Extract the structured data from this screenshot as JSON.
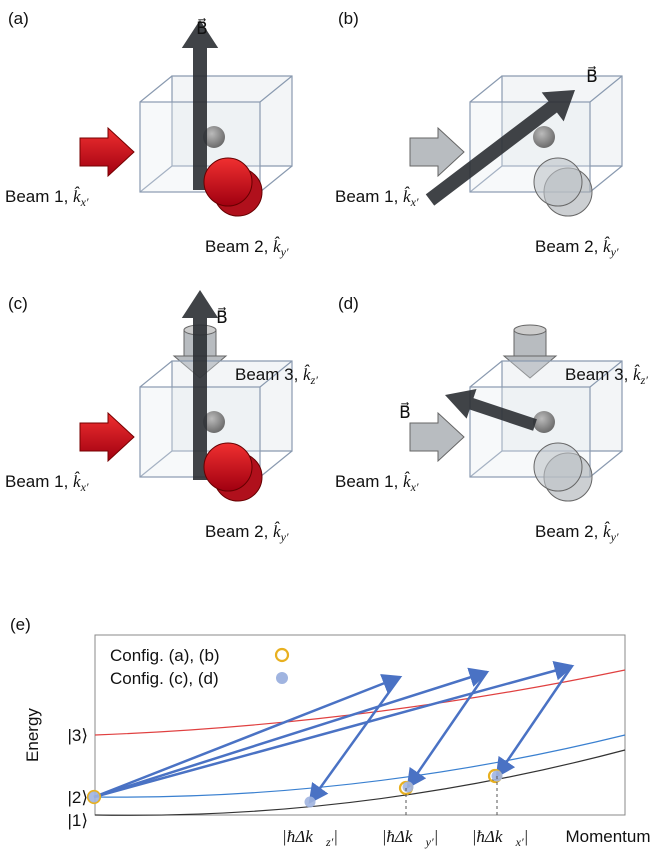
{
  "panels": [
    {
      "label": "(a)",
      "field": "B⃗",
      "beams": [
        {
          "name": "Beam 1, ",
          "symbol": "k̂",
          "sub": "x′"
        },
        {
          "name": "Beam 2, ",
          "symbol": "k̂",
          "sub": "y′"
        }
      ]
    },
    {
      "label": "(b)",
      "field": "B⃗",
      "beams": [
        {
          "name": "Beam 1, ",
          "symbol": "k̂",
          "sub": "x′"
        },
        {
          "name": "Beam 2, ",
          "symbol": "k̂",
          "sub": "y′"
        }
      ]
    },
    {
      "label": "(c)",
      "field": "B⃗",
      "beams": [
        {
          "name": "Beam 1, ",
          "symbol": "k̂",
          "sub": "x′"
        },
        {
          "name": "Beam 2, ",
          "symbol": "k̂",
          "sub": "y′"
        },
        {
          "name": "Beam 3, ",
          "symbol": "k̂",
          "sub": "z′"
        }
      ]
    },
    {
      "label": "(d)",
      "field": "B⃗",
      "beams": [
        {
          "name": "Beam 1, ",
          "symbol": "k̂",
          "sub": "x′"
        },
        {
          "name": "Beam 2, ",
          "symbol": "k̂",
          "sub": "y′"
        },
        {
          "name": "Beam 3, ",
          "symbol": "k̂",
          "sub": "z′"
        }
      ]
    }
  ],
  "energy_diagram": {
    "label": "(e)",
    "legend": [
      "Config. (a), (b)",
      "Config. (c), (d)"
    ],
    "y_axis": "Energy",
    "levels": [
      "|3⟩",
      "|2⟩",
      "|1⟩"
    ],
    "x_ticks": [
      {
        "main": "|ħΔk⃗",
        "sub": "z′",
        "close": "|"
      },
      {
        "main": "|ħΔk⃗",
        "sub": "y′",
        "close": "|"
      },
      {
        "main": "|ħΔk⃗",
        "sub": "x′",
        "close": "|"
      }
    ],
    "x_axis": "Momentum"
  }
}
